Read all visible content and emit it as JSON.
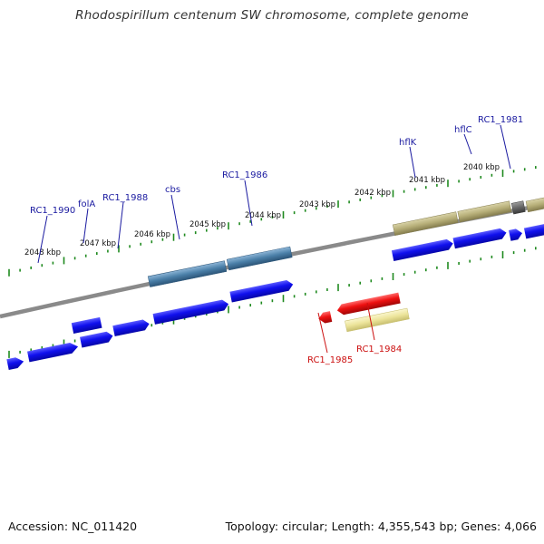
{
  "title": "Rhodospirillum centenum SW chromosome, complete genome",
  "footer": {
    "accession": "Accession: NC_011420",
    "summary": "Topology: circular; Length: 4,355,543 bp; Genes: 4,066"
  },
  "colors": {
    "forward_cds": "#1010ee",
    "reverse_cds": "#ee1010",
    "forward_feature_steel": "#4a7fa8",
    "forward_feature_khaki": "#b6ae78",
    "reverse_feature_khaki": "#ece49a",
    "gray_feature": "#666666",
    "backbone": "#8a8a8a",
    "ticks": "#1f8a1f",
    "forward_label": "#1a1aa0",
    "reverse_label": "#cc1010"
  },
  "ticks": [
    {
      "label": "2048 kbp"
    },
    {
      "label": "2047 kbp"
    },
    {
      "label": "2046 kbp"
    },
    {
      "label": "2045 kbp"
    },
    {
      "label": "2044 kbp"
    },
    {
      "label": "2043 kbp"
    },
    {
      "label": "2042 kbp"
    },
    {
      "label": "2041 kbp"
    },
    {
      "label": "2040 kbp"
    }
  ],
  "forward_labels": [
    "RC1_1990",
    "folA",
    "RC1_1988",
    "cbs",
    "RC1_1986",
    "hflK",
    "hflC",
    "RC1_1981"
  ],
  "reverse_labels": [
    "RC1_1985",
    "RC1_1984"
  ]
}
